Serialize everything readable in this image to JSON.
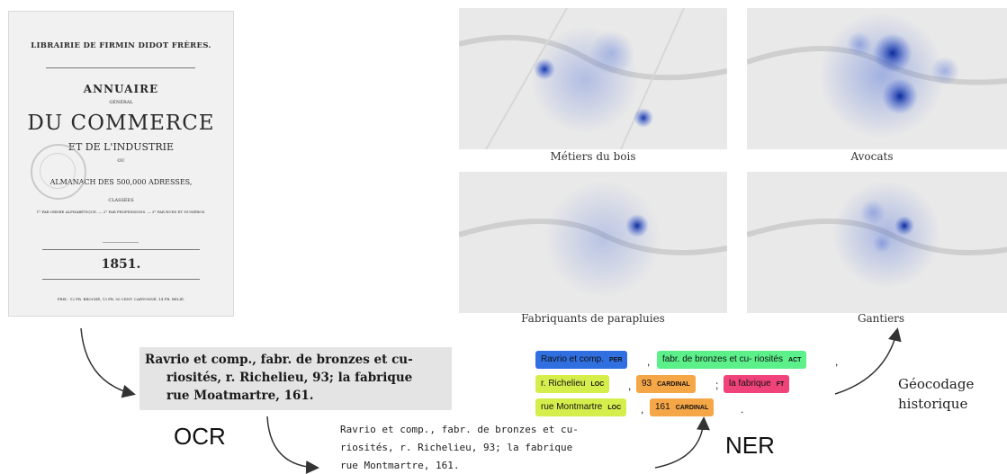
{
  "cover": {
    "publisher": "LIBRAIRIE DE FIRMIN DIDOT FRÈRES.",
    "line1": "ANNUAIRE",
    "line2": "GÉNÉRAL",
    "line3": "DU COMMERCE",
    "line4": "ET DE L'INDUSTRIE",
    "line5": "OU",
    "line6": "ALMANACH DES 500,000 ADRESSES,",
    "line7": "CLASSÉES",
    "line8": "1° PAR ORDRE ALPHABÉTIQUE. — 2° PAR PROFESSIONS. — 3° PAR RUES ET NUMÉROS.",
    "year": "1851.",
    "price": "PRIX : 12 FR. BROCHÉ, 13 FR. 50 CENT. CARTONNÉ, 14 FR. RELIÉ."
  },
  "maps": [
    {
      "caption": "Métiers du bois"
    },
    {
      "caption": "Avocats"
    },
    {
      "caption": "Fabriquants de parapluies"
    },
    {
      "caption": "Gantiers"
    }
  ],
  "ocr_image": {
    "line1": "Ravrio et comp., fabr. de bronzes et cu-",
    "line2": "riosités, r. Richelieu, 93; la fabrique",
    "line3": "rue Moatmartre, 161."
  },
  "ocr_text": {
    "line1": "Ravrio et comp., fabr. de bronzes et cu-",
    "line2": "riosités, r. Richelieu, 93; la fabrique",
    "line3": "rue Montmartre, 161."
  },
  "labels": {
    "ocr": "OCR",
    "ner": "NER",
    "geo1": "Géocodage",
    "geo2": "historique"
  },
  "ner_tags": [
    {
      "text": "Ravrio et comp.",
      "label": "PER",
      "color": "#2f6fe0"
    },
    {
      "text": "fabr. de bronzes et cu- riosités",
      "label": "ACT",
      "color": "#5cf08a"
    },
    {
      "text": "r. Richelieu",
      "label": "LOC",
      "color": "#d6ee4c"
    },
    {
      "text": "93",
      "label": "CARDINAL",
      "color": "#f5a646"
    },
    {
      "text": "la fabrique",
      "label": "FT",
      "color": "#f0437a"
    },
    {
      "text": "rue Montmartre",
      "label": "LOC",
      "color": "#d6ee4c"
    },
    {
      "text": "161",
      "label": "CARDINAL",
      "color": "#f5a646"
    }
  ],
  "separators": {
    "s1": ",",
    "s2": ",",
    "s3": ",",
    "s4": ";",
    "s5": ",",
    "s6": "."
  }
}
